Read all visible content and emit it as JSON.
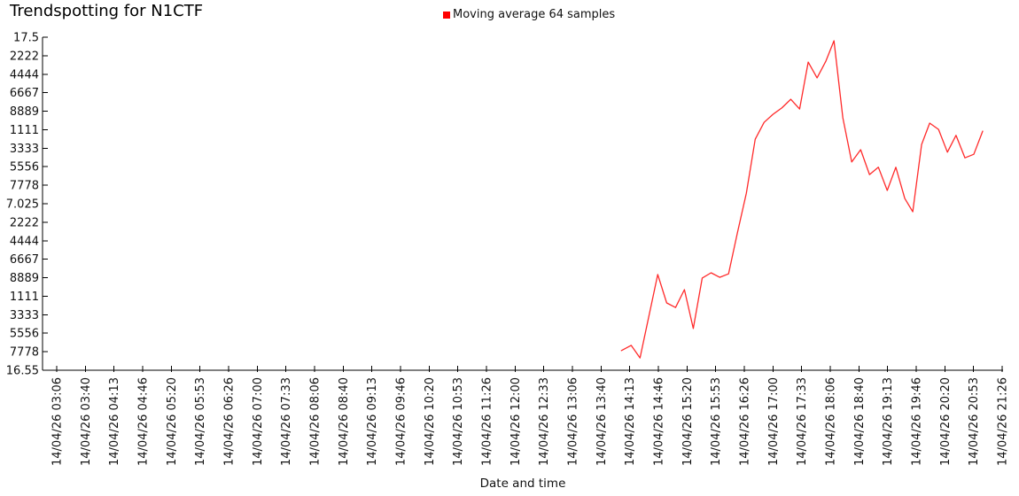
{
  "chart": {
    "title": "Trendspotting for N1CTF",
    "xlabel": "Date and time",
    "legend_label": "Moving average 64 samples",
    "legend_color": "#ff0000",
    "line_color": "#ff2a2a",
    "axis_color": "#000000"
  },
  "chart_data": {
    "type": "line",
    "title": "Trendspotting for N1CTF",
    "xlabel": "Date and time",
    "ylabel": "",
    "grid": false,
    "legend": [
      "Moving average 64 samples"
    ],
    "legend_position": "top-center",
    "ylim": [
      16.55,
      17.5
    ],
    "y_ticks": {
      "values": [
        17.5,
        17.447,
        17.394,
        17.342,
        17.289,
        17.236,
        17.183,
        17.131,
        17.078,
        17.025,
        16.972,
        16.919,
        16.867,
        16.814,
        16.761,
        16.708,
        16.656,
        16.603,
        16.55
      ],
      "labels_displayed": [
        "17.5",
        "2222",
        "4444",
        "6667",
        "8889",
        "1111",
        "3333",
        "5556",
        "7778",
        "7.025",
        "2222",
        "4444",
        "6667",
        "8889",
        "1111",
        "3333",
        "5556",
        "7778",
        "16.55"
      ]
    },
    "x_tick_labels": [
      "14/04/26 03:06",
      "14/04/26 03:40",
      "14/04/26 04:13",
      "14/04/26 04:46",
      "14/04/26 05:20",
      "14/04/26 05:53",
      "14/04/26 06:26",
      "14/04/26 07:00",
      "14/04/26 07:33",
      "14/04/26 08:06",
      "14/04/26 08:40",
      "14/04/26 09:13",
      "14/04/26 09:46",
      "14/04/26 10:20",
      "14/04/26 10:53",
      "14/04/26 11:26",
      "14/04/26 12:00",
      "14/04/26 12:33",
      "14/04/26 13:06",
      "14/04/26 13:40",
      "14/04/26 14:13",
      "14/04/26 14:46",
      "14/04/26 15:20",
      "14/04/26 15:53",
      "14/04/26 16:26",
      "14/04/26 17:00",
      "14/04/26 17:33",
      "14/04/26 18:06",
      "14/04/26 18:40",
      "14/04/26 19:13",
      "14/04/26 19:46",
      "14/04/26 20:20",
      "14/04/26 20:53",
      "14/04/26 21:26"
    ],
    "series": [
      {
        "name": "Moving average 64 samples",
        "color": "#ff2a2a",
        "x_unit": "x-axis tick index (0 = 14/04/26 03:06 tick, 33 = 14/04/26 21:26 tick)",
        "points": [
          [
            19.71,
            16.606
          ],
          [
            20.05,
            16.621
          ],
          [
            20.36,
            16.585
          ],
          [
            20.67,
            16.704
          ],
          [
            20.98,
            16.823
          ],
          [
            21.29,
            16.742
          ],
          [
            21.6,
            16.729
          ],
          [
            21.91,
            16.78
          ],
          [
            22.22,
            16.669
          ],
          [
            22.53,
            16.813
          ],
          [
            22.84,
            16.828
          ],
          [
            23.14,
            16.815
          ],
          [
            23.45,
            16.825
          ],
          [
            23.76,
            16.942
          ],
          [
            24.07,
            17.055
          ],
          [
            24.38,
            17.209
          ],
          [
            24.69,
            17.257
          ],
          [
            25.0,
            17.28
          ],
          [
            25.31,
            17.298
          ],
          [
            25.62,
            17.323
          ],
          [
            25.93,
            17.295
          ],
          [
            26.23,
            17.429
          ],
          [
            26.54,
            17.384
          ],
          [
            26.85,
            17.432
          ],
          [
            27.13,
            17.49
          ],
          [
            27.44,
            17.27
          ],
          [
            27.75,
            17.144
          ],
          [
            28.06,
            17.179
          ],
          [
            28.37,
            17.108
          ],
          [
            28.68,
            17.129
          ],
          [
            28.99,
            17.063
          ],
          [
            29.29,
            17.129
          ],
          [
            29.6,
            17.04
          ],
          [
            29.88,
            17.002
          ],
          [
            30.19,
            17.194
          ],
          [
            30.47,
            17.255
          ],
          [
            30.78,
            17.237
          ],
          [
            31.09,
            17.172
          ],
          [
            31.39,
            17.22
          ],
          [
            31.7,
            17.156
          ],
          [
            32.01,
            17.166
          ],
          [
            32.32,
            17.232
          ]
        ]
      }
    ]
  }
}
